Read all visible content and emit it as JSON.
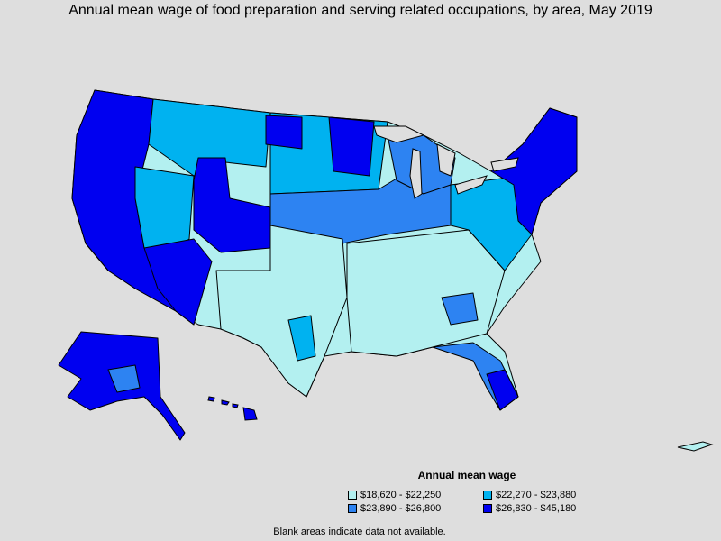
{
  "title": "Annual mean wage of food preparation and serving related occupations, by area, May 2019",
  "legend": {
    "title": "Annual mean wage",
    "items": [
      {
        "label": "$18,620 - $22,250",
        "color": "#b3f0f0"
      },
      {
        "label": "$22,270 - $23,880",
        "color": "#00b2f0"
      },
      {
        "label": "$23,890 - $26,800",
        "color": "#2d83f2"
      },
      {
        "label": "$26,830 - $45,180",
        "color": "#0000f0"
      }
    ]
  },
  "note": "Blank areas indicate data not available.",
  "colors": {
    "background": "#dedede",
    "border": "#000000"
  }
}
